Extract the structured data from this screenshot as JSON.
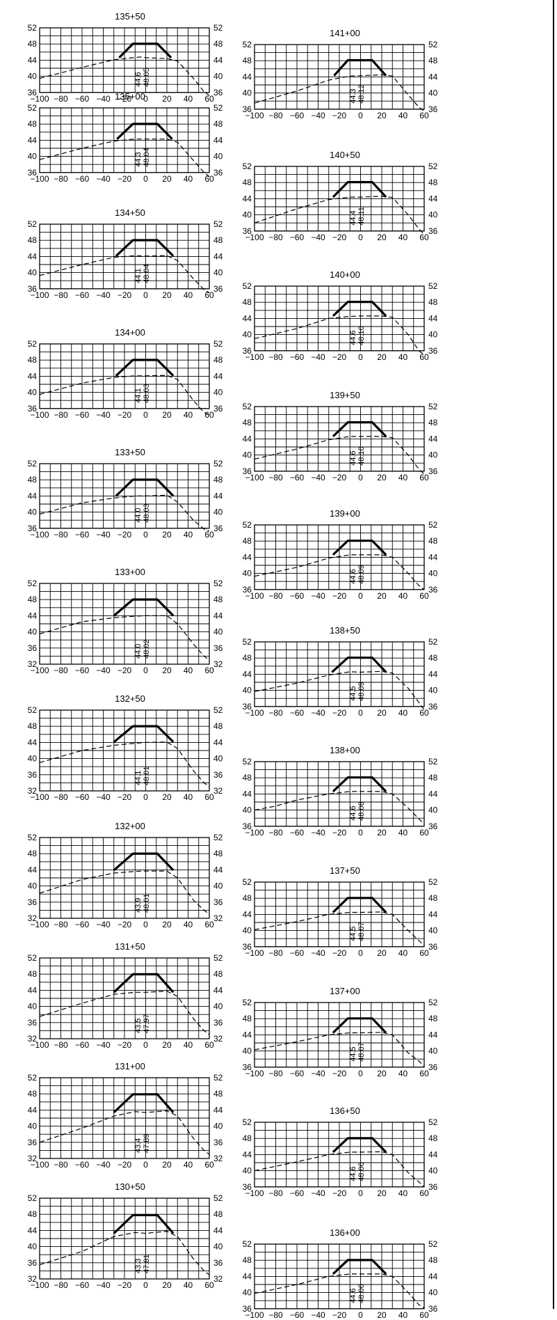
{
  "sheet": {
    "axis": {
      "xmin": -100,
      "xmax": 60,
      "x_ticks": [
        -100,
        -80,
        -60,
        -40,
        -20,
        0,
        20,
        40,
        60
      ],
      "grid_x_step": 10,
      "grid": true
    },
    "colors": {
      "design": "#000000",
      "ground": "#000000",
      "grid": "#000000",
      "background": "#ffffff"
    }
  },
  "chart_data": [
    {
      "type": "line",
      "title": "135+50",
      "column": "left",
      "ylim": [
        36,
        52
      ],
      "y_ticks": [
        36,
        40,
        44,
        48,
        52
      ],
      "ground_level": "44.6",
      "design_level": "48.05",
      "design": {
        "x": [
          -25,
          -12,
          11,
          24
        ],
        "y": [
          44.6,
          48.05,
          48.05,
          44.6
        ]
      },
      "ground": {
        "x": [
          -100,
          -60,
          -30,
          -5,
          0,
          20,
          30,
          45,
          55,
          60
        ],
        "y": [
          39.5,
          42.2,
          44.1,
          44.8,
          44.6,
          44.4,
          43.8,
          39.5,
          36.2,
          35.2
        ]
      }
    },
    {
      "type": "line",
      "title": "135+00",
      "column": "left",
      "ylim": [
        36,
        52
      ],
      "y_ticks": [
        36,
        40,
        44,
        48,
        52
      ],
      "ground_level": "44.3",
      "design_level": "48.04",
      "design": {
        "x": [
          -27,
          -12,
          11,
          25
        ],
        "y": [
          44.3,
          48.04,
          48.04,
          44.3
        ]
      },
      "ground": {
        "x": [
          -100,
          -60,
          -30,
          -10,
          0,
          20,
          30,
          45,
          55,
          60
        ],
        "y": [
          39.2,
          42.0,
          43.8,
          44.3,
          44.3,
          44.3,
          43.5,
          39.0,
          36.0,
          35.0
        ]
      }
    },
    {
      "type": "line",
      "title": "134+50",
      "column": "left",
      "ylim": [
        36,
        52
      ],
      "y_ticks": [
        36,
        40,
        44,
        48,
        52
      ],
      "ground_level": "44.1",
      "design_level": "48.04",
      "design": {
        "x": [
          -28,
          -12,
          11,
          26
        ],
        "y": [
          44.1,
          48.04,
          48.04,
          44.1
        ]
      },
      "ground": {
        "x": [
          -100,
          -60,
          -30,
          -10,
          0,
          20,
          30,
          45,
          55,
          60
        ],
        "y": [
          39.3,
          42.0,
          43.8,
          44.2,
          44.1,
          44.2,
          43.0,
          38.5,
          35.8,
          35.0
        ]
      }
    },
    {
      "type": "line",
      "title": "134+00",
      "column": "left",
      "ylim": [
        36,
        52
      ],
      "y_ticks": [
        36,
        40,
        44,
        48,
        52
      ],
      "ground_level": "44.1",
      "design_level": "48.03",
      "design": {
        "x": [
          -28,
          -12,
          11,
          26
        ],
        "y": [
          44.1,
          48.03,
          48.03,
          44.1
        ]
      },
      "ground": {
        "x": [
          -100,
          -60,
          -30,
          -10,
          0,
          20,
          30,
          45,
          55,
          60
        ],
        "y": [
          39.5,
          42.3,
          43.7,
          44.1,
          44.1,
          44.2,
          43.2,
          38.0,
          35.0,
          34.5
        ]
      }
    },
    {
      "type": "line",
      "title": "133+50",
      "column": "left",
      "ylim": [
        36,
        52
      ],
      "y_ticks": [
        36,
        40,
        44,
        48,
        52
      ],
      "ground_level": "44.0",
      "design_level": "48.03",
      "design": {
        "x": [
          -28,
          -12,
          11,
          26
        ],
        "y": [
          44.0,
          48.03,
          48.03,
          44.0
        ]
      },
      "ground": {
        "x": [
          -100,
          -60,
          -30,
          -10,
          0,
          20,
          30,
          45,
          55,
          60
        ],
        "y": [
          39.5,
          42.3,
          43.5,
          44.0,
          44.0,
          44.2,
          42.5,
          38.0,
          35.8,
          35.3
        ]
      }
    },
    {
      "type": "line",
      "title": "133+00",
      "column": "left",
      "ylim": [
        32,
        52
      ],
      "y_ticks": [
        32,
        36,
        40,
        44,
        48,
        52
      ],
      "ground_level": "44.0",
      "design_level": "48.02",
      "design": {
        "x": [
          -30,
          -12,
          11,
          26
        ],
        "y": [
          44.0,
          48.02,
          48.02,
          44.0
        ]
      },
      "ground": {
        "x": [
          -100,
          -60,
          -30,
          -10,
          0,
          20,
          30,
          45,
          55,
          60
        ],
        "y": [
          39.5,
          42.5,
          43.5,
          43.9,
          44.0,
          44.0,
          42.0,
          37.0,
          34.0,
          33.0
        ]
      }
    },
    {
      "type": "line",
      "title": "132+50",
      "column": "left",
      "ylim": [
        32,
        52
      ],
      "y_ticks": [
        32,
        36,
        40,
        44,
        48,
        52
      ],
      "ground_level": "44.1",
      "design_level": "48.01",
      "design": {
        "x": [
          -30,
          -12,
          11,
          26
        ],
        "y": [
          44.1,
          48.01,
          48.01,
          44.1
        ]
      },
      "ground": {
        "x": [
          -100,
          -60,
          -30,
          -10,
          0,
          20,
          30,
          45,
          55,
          60
        ],
        "y": [
          39.0,
          42.0,
          43.3,
          43.8,
          44.0,
          44.1,
          42.5,
          37.0,
          34.0,
          33.0
        ]
      }
    },
    {
      "type": "line",
      "title": "132+00",
      "column": "left",
      "ylim": [
        32,
        52
      ],
      "y_ticks": [
        32,
        36,
        40,
        44,
        48,
        52
      ],
      "ground_level": "43.9",
      "design_level": "48.01",
      "design": {
        "x": [
          -30,
          -12,
          11,
          26
        ],
        "y": [
          43.9,
          48.01,
          48.01,
          43.9
        ]
      },
      "ground": {
        "x": [
          -100,
          -60,
          -30,
          -10,
          0,
          20,
          30,
          45,
          55,
          60
        ],
        "y": [
          38.2,
          41.6,
          43.2,
          43.6,
          43.7,
          43.7,
          42.0,
          36.5,
          34.0,
          33.0
        ]
      }
    },
    {
      "type": "line",
      "title": "131+50",
      "column": "left",
      "ylim": [
        32,
        52
      ],
      "y_ticks": [
        32,
        36,
        40,
        44,
        48,
        52
      ],
      "ground_level": "43.5",
      "design_level": "47.97",
      "design": {
        "x": [
          -30,
          -12,
          11,
          26
        ],
        "y": [
          43.5,
          47.97,
          47.97,
          43.5
        ]
      },
      "ground": {
        "x": [
          -100,
          -60,
          -30,
          -10,
          0,
          20,
          30,
          45,
          55,
          60
        ],
        "y": [
          37.5,
          40.8,
          43.0,
          43.5,
          43.5,
          43.8,
          42.5,
          37.0,
          34.0,
          33.0
        ]
      }
    },
    {
      "type": "line",
      "title": "131+00",
      "column": "left",
      "ylim": [
        32,
        52
      ],
      "y_ticks": [
        32,
        36,
        40,
        44,
        48,
        52
      ],
      "ground_level": "43.4",
      "design_level": "47.89",
      "design": {
        "x": [
          -30,
          -12,
          11,
          26
        ],
        "y": [
          43.4,
          47.89,
          47.89,
          43.4
        ]
      },
      "ground": {
        "x": [
          -100,
          -60,
          -30,
          -10,
          0,
          20,
          30,
          45,
          55,
          60
        ],
        "y": [
          36.0,
          39.5,
          42.5,
          43.6,
          43.4,
          43.8,
          42.5,
          37.0,
          34.0,
          33.0
        ]
      }
    },
    {
      "type": "line",
      "title": "130+50",
      "column": "left",
      "ylim": [
        32,
        52
      ],
      "y_ticks": [
        32,
        36,
        40,
        44,
        48,
        52
      ],
      "ground_level": "43.3",
      "design_level": "47.81",
      "design": {
        "x": [
          -30,
          -12,
          11,
          26
        ],
        "y": [
          43.3,
          47.81,
          47.81,
          43.3
        ]
      },
      "ground": {
        "x": [
          -100,
          -60,
          -30,
          -10,
          0,
          20,
          30,
          45,
          55,
          60
        ],
        "y": [
          35.5,
          38.8,
          42.5,
          43.5,
          43.3,
          43.8,
          42.5,
          37.0,
          34.0,
          33.0
        ]
      }
    },
    {
      "type": "line",
      "title": "141+00",
      "column": "right",
      "ylim": [
        36,
        52
      ],
      "y_ticks": [
        36,
        40,
        44,
        48,
        52
      ],
      "ground_level": "44.3",
      "design_level": "48.12",
      "design": {
        "x": [
          -25,
          -12,
          11,
          24
        ],
        "y": [
          44.3,
          48.12,
          48.12,
          44.3
        ]
      },
      "ground": {
        "x": [
          -100,
          -60,
          -30,
          -10,
          0,
          20,
          30,
          45,
          55,
          60
        ],
        "y": [
          37.5,
          40.5,
          43.2,
          44.2,
          44.3,
          44.5,
          44.2,
          39.5,
          36.5,
          35.5
        ]
      }
    },
    {
      "type": "line",
      "title": "140+50",
      "column": "right",
      "ylim": [
        36,
        52
      ],
      "y_ticks": [
        36,
        40,
        44,
        48,
        52
      ],
      "ground_level": "44.4",
      "design_level": "48.11",
      "design": {
        "x": [
          -26,
          -12,
          11,
          24
        ],
        "y": [
          44.4,
          48.11,
          48.11,
          44.4
        ]
      },
      "ground": {
        "x": [
          -100,
          -60,
          -30,
          -10,
          0,
          20,
          30,
          45,
          55,
          60
        ],
        "y": [
          38.0,
          41.5,
          43.8,
          44.4,
          44.4,
          44.6,
          44.3,
          40.0,
          36.5,
          35.2
        ]
      }
    },
    {
      "type": "line",
      "title": "140+00",
      "column": "right",
      "ylim": [
        36,
        52
      ],
      "y_ticks": [
        36,
        40,
        44,
        48,
        52
      ],
      "ground_level": "44.6",
      "design_level": "48.10",
      "design": {
        "x": [
          -26,
          -12,
          11,
          24
        ],
        "y": [
          44.6,
          48.1,
          48.1,
          44.6
        ]
      },
      "ground": {
        "x": [
          -100,
          -60,
          -30,
          -10,
          0,
          20,
          30,
          45,
          55,
          60
        ],
        "y": [
          39.0,
          41.5,
          44.0,
          44.5,
          44.6,
          44.6,
          44.3,
          40.0,
          36.0,
          35.0
        ]
      }
    },
    {
      "type": "line",
      "title": "139+50",
      "column": "right",
      "ylim": [
        36,
        52
      ],
      "y_ticks": [
        36,
        40,
        44,
        48,
        52
      ],
      "ground_level": "44.6",
      "design_level": "48.10",
      "design": {
        "x": [
          -26,
          -12,
          11,
          24
        ],
        "y": [
          44.6,
          48.1,
          48.1,
          44.6
        ]
      },
      "ground": {
        "x": [
          -100,
          -60,
          -30,
          -10,
          0,
          20,
          30,
          45,
          55,
          60
        ],
        "y": [
          39.0,
          41.5,
          43.8,
          44.6,
          44.6,
          44.6,
          44.3,
          40.0,
          36.5,
          35.3
        ]
      }
    },
    {
      "type": "line",
      "title": "139+00",
      "column": "right",
      "ylim": [
        36,
        52
      ],
      "y_ticks": [
        36,
        40,
        44,
        48,
        52
      ],
      "ground_level": "44.6",
      "design_level": "48.09",
      "design": {
        "x": [
          -26,
          -12,
          11,
          24
        ],
        "y": [
          44.6,
          48.09,
          48.09,
          44.6
        ]
      },
      "ground": {
        "x": [
          -100,
          -60,
          -30,
          -10,
          0,
          20,
          30,
          45,
          55,
          60
        ],
        "y": [
          39.3,
          41.5,
          43.8,
          44.6,
          44.6,
          44.6,
          44.0,
          40.0,
          37.0,
          36.0
        ]
      }
    },
    {
      "type": "line",
      "title": "138+50",
      "column": "right",
      "ylim": [
        36,
        52
      ],
      "y_ticks": [
        36,
        40,
        44,
        48,
        52
      ],
      "ground_level": "44.5",
      "design_level": "48.09",
      "design": {
        "x": [
          -27,
          -12,
          11,
          24
        ],
        "y": [
          44.5,
          48.09,
          48.09,
          44.5
        ]
      },
      "ground": {
        "x": [
          -100,
          -60,
          -30,
          -10,
          0,
          20,
          30,
          45,
          55,
          60
        ],
        "y": [
          39.7,
          41.8,
          43.8,
          44.6,
          44.5,
          44.7,
          44.3,
          40.5,
          37.0,
          35.2
        ]
      }
    },
    {
      "type": "line",
      "title": "138+00",
      "column": "right",
      "ylim": [
        36,
        52
      ],
      "y_ticks": [
        36,
        40,
        44,
        48,
        52
      ],
      "ground_level": "44.6",
      "design_level": "48.08",
      "design": {
        "x": [
          -26,
          -12,
          11,
          24
        ],
        "y": [
          44.6,
          48.08,
          48.08,
          44.6
        ]
      },
      "ground": {
        "x": [
          -100,
          -80,
          -60,
          -30,
          -10,
          0,
          20,
          30,
          45,
          60
        ],
        "y": [
          40.0,
          41.0,
          42.5,
          44.0,
          44.6,
          44.6,
          44.6,
          44.0,
          40.5,
          36.5
        ]
      }
    },
    {
      "type": "line",
      "title": "137+50",
      "column": "right",
      "ylim": [
        36,
        52
      ],
      "y_ticks": [
        36,
        40,
        44,
        48,
        52
      ],
      "ground_level": "44.5",
      "design_level": "48.07",
      "design": {
        "x": [
          -26,
          -12,
          11,
          24
        ],
        "y": [
          44.5,
          48.07,
          48.07,
          44.5
        ]
      },
      "ground": {
        "x": [
          -100,
          -60,
          -30,
          -10,
          0,
          20,
          30,
          45,
          55,
          60
        ],
        "y": [
          40.2,
          42.2,
          44.0,
          44.5,
          44.5,
          44.6,
          44.0,
          40.0,
          37.5,
          36.3
        ]
      }
    },
    {
      "type": "line",
      "title": "137+00",
      "column": "right",
      "ylim": [
        36,
        52
      ],
      "y_ticks": [
        36,
        40,
        44,
        48,
        52
      ],
      "ground_level": "44.5",
      "design_level": "48.07",
      "design": {
        "x": [
          -26,
          -12,
          11,
          24
        ],
        "y": [
          44.5,
          48.07,
          48.07,
          44.5
        ]
      },
      "ground": {
        "x": [
          -100,
          -60,
          -30,
          -10,
          0,
          20,
          30,
          45,
          55,
          60
        ],
        "y": [
          40.3,
          42.3,
          44.0,
          44.5,
          44.5,
          44.6,
          44.0,
          39.5,
          37.5,
          36.2
        ]
      }
    },
    {
      "type": "line",
      "title": "136+50",
      "column": "right",
      "ylim": [
        36,
        52
      ],
      "y_ticks": [
        36,
        40,
        44,
        48,
        52
      ],
      "ground_level": "44.6",
      "design_level": "48.06",
      "design": {
        "x": [
          -26,
          -12,
          11,
          24
        ],
        "y": [
          44.6,
          48.06,
          48.06,
          44.6
        ]
      },
      "ground": {
        "x": [
          -100,
          -60,
          -30,
          -10,
          0,
          20,
          30,
          45,
          55,
          60
        ],
        "y": [
          40.0,
          42.2,
          44.0,
          44.6,
          44.6,
          44.7,
          44.0,
          39.5,
          37.2,
          36.0
        ]
      }
    },
    {
      "type": "line",
      "title": "136+00",
      "column": "right",
      "ylim": [
        36,
        52
      ],
      "y_ticks": [
        36,
        40,
        44,
        48,
        52
      ],
      "ground_level": "44.6",
      "design_level": "48.06",
      "design": {
        "x": [
          -26,
          -12,
          11,
          24
        ],
        "y": [
          44.6,
          48.06,
          48.06,
          44.6
        ]
      },
      "ground": {
        "x": [
          -100,
          -60,
          -30,
          -10,
          0,
          20,
          30,
          45,
          55,
          60
        ],
        "y": [
          39.8,
          42.0,
          44.0,
          44.6,
          44.6,
          44.6,
          44.0,
          40.0,
          37.0,
          36.2
        ]
      }
    }
  ]
}
